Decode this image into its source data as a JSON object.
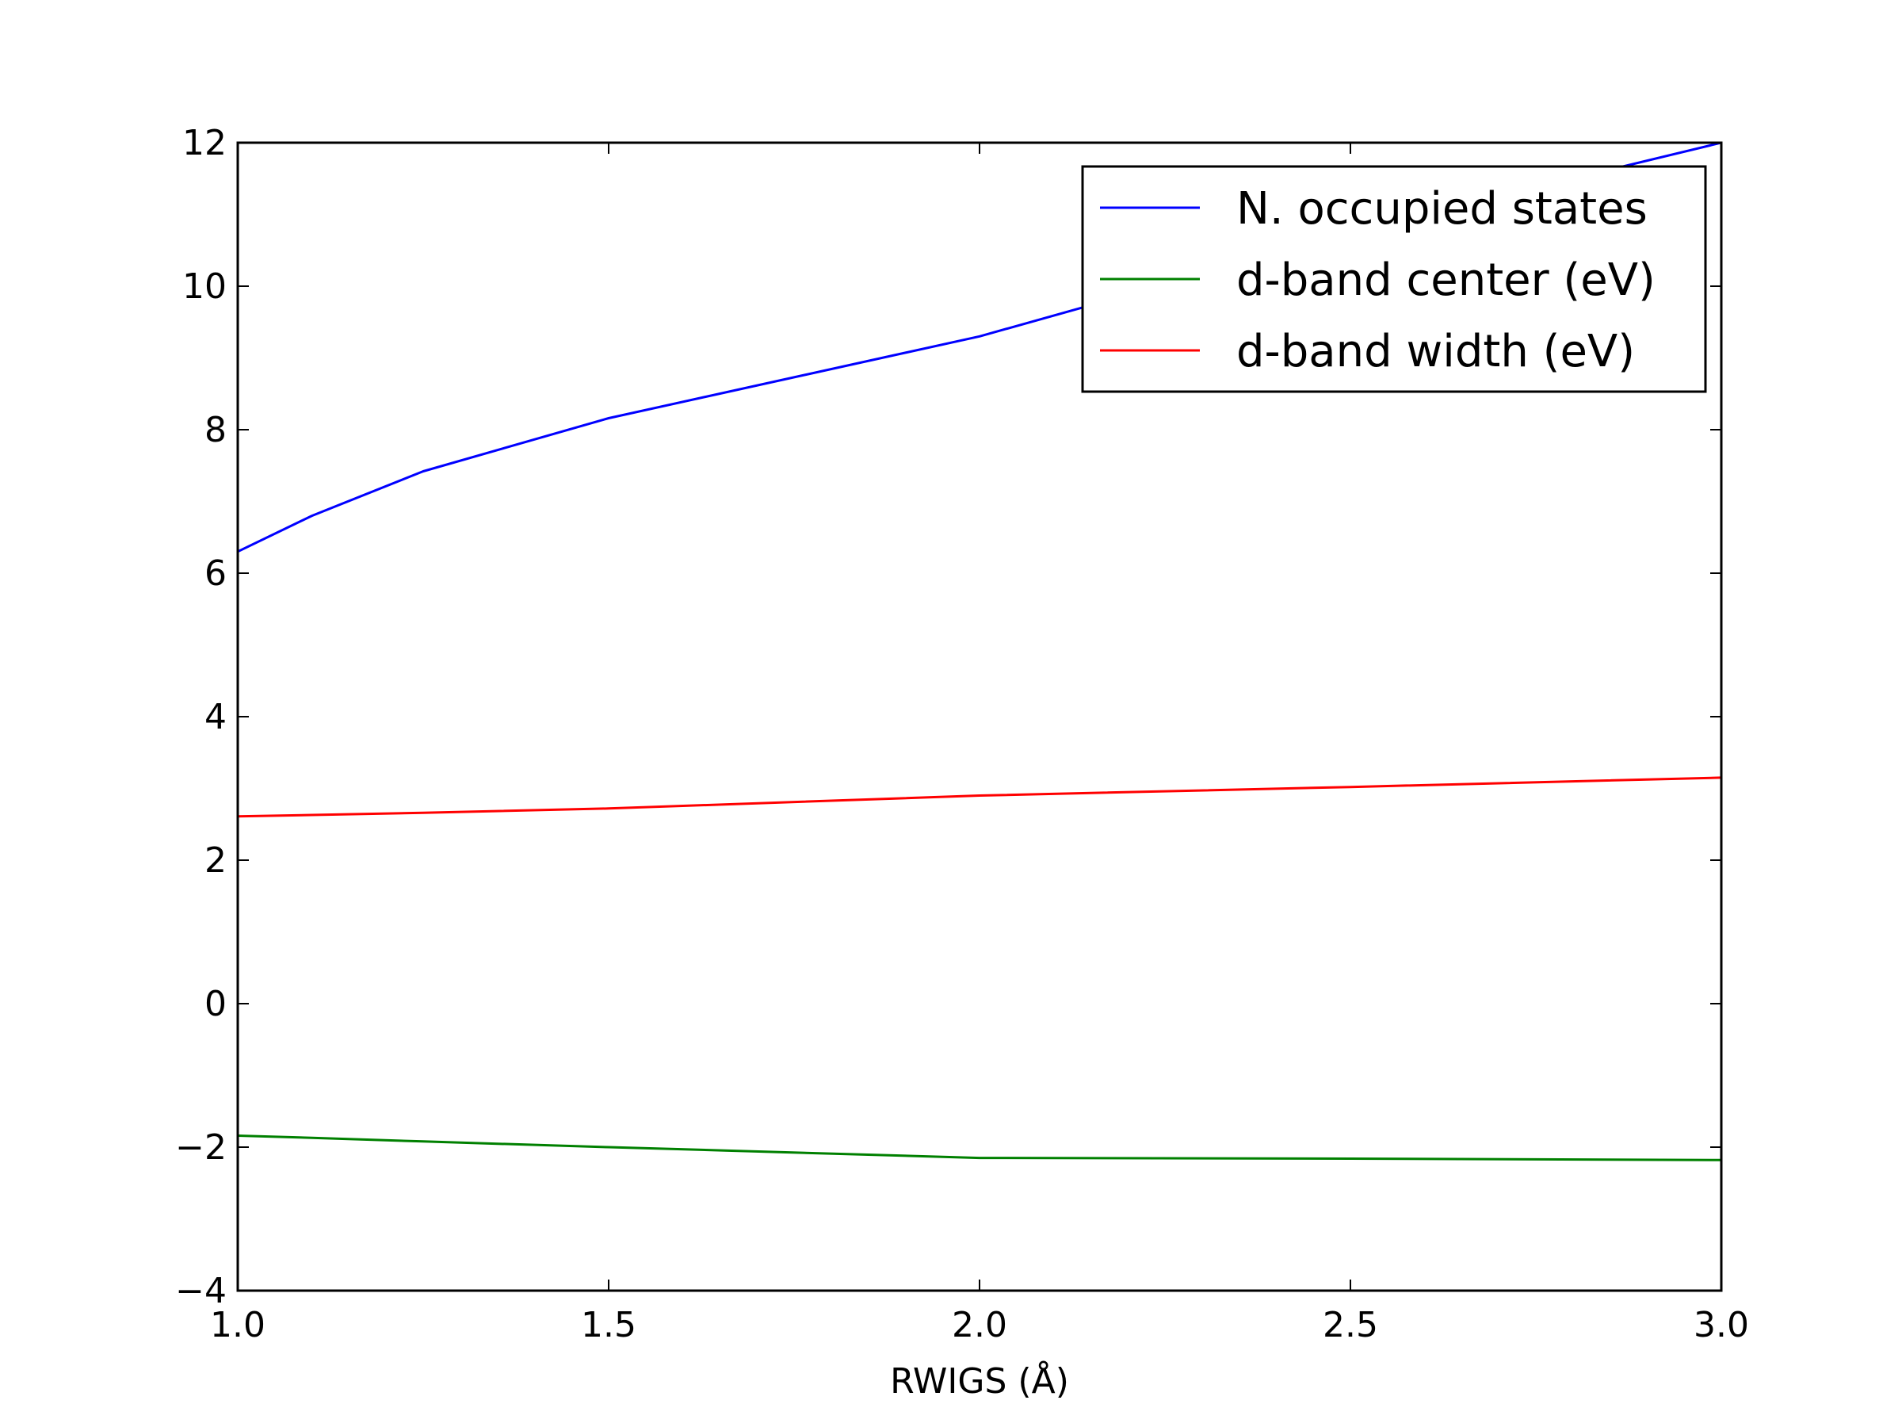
{
  "chart_data": {
    "type": "line",
    "title": "",
    "xlabel": "RWIGS (Å)",
    "ylabel": "",
    "xlim": [
      1.0,
      3.0
    ],
    "ylim": [
      -4,
      12
    ],
    "x_ticks": [
      1.0,
      1.5,
      2.0,
      2.5,
      3.0
    ],
    "x_tick_labels": [
      "1.0",
      "1.5",
      "2.0",
      "2.5",
      "3.0"
    ],
    "y_ticks": [
      -4,
      -2,
      0,
      2,
      4,
      6,
      8,
      10,
      12
    ],
    "y_tick_labels": [
      "−4",
      "−2",
      "0",
      "2",
      "4",
      "6",
      "8",
      "10",
      "12"
    ],
    "grid": false,
    "legend_position": "top-right",
    "series": [
      {
        "name": "N. occupied states",
        "color": "#0000ff",
        "x": [
          1.0,
          1.1,
          1.25,
          1.5,
          2.0,
          2.5,
          3.0
        ],
        "y": [
          6.3,
          6.8,
          7.42,
          8.16,
          9.3,
          10.75,
          12.0
        ]
      },
      {
        "name": "d-band center (eV)",
        "color": "#008000",
        "x": [
          1.0,
          1.1,
          1.25,
          1.5,
          2.0,
          2.5,
          3.0
        ],
        "y": [
          -1.84,
          -1.87,
          -1.92,
          -2.0,
          -2.15,
          -2.16,
          -2.18
        ]
      },
      {
        "name": "d-band width (eV)",
        "color": "#ff0000",
        "x": [
          1.0,
          1.1,
          1.25,
          1.5,
          2.0,
          2.5,
          3.0
        ],
        "y": [
          2.61,
          2.63,
          2.66,
          2.72,
          2.9,
          3.02,
          3.15
        ]
      }
    ]
  }
}
